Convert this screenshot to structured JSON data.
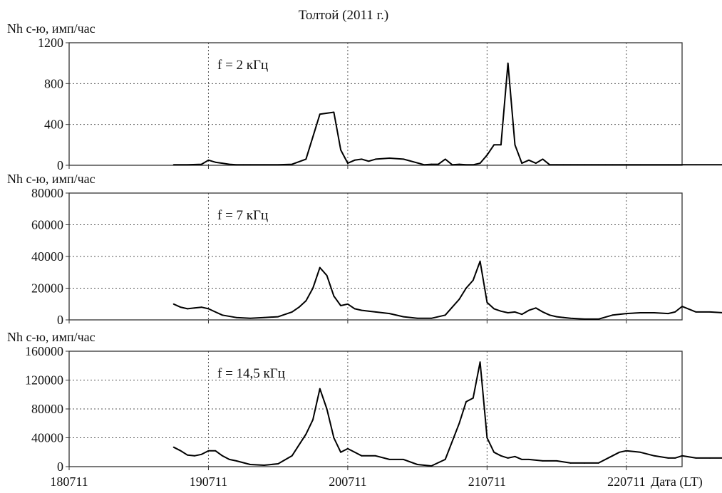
{
  "figure": {
    "title": "Толтой (2011 г.)",
    "xaxis_label": "Дата (LT)",
    "x_tick_labels": [
      "180711",
      "190711",
      "200711",
      "210711",
      "220711"
    ]
  },
  "colors": {
    "line": "#000000",
    "grid": "#555555",
    "frame": "#333333",
    "background": "#ffffff"
  },
  "chart_data": [
    {
      "type": "line",
      "ylabel": "Nh с-ю, имп/час",
      "annotation": "f = 2 кГц",
      "ylim": [
        0,
        1200
      ],
      "yticks": [
        0,
        400,
        800,
        1200
      ],
      "y_tick_labels": [
        "0",
        "400",
        "800",
        "1200"
      ],
      "grid": true,
      "x": [
        18.75,
        18.85,
        18.95,
        19.0,
        19.05,
        19.1,
        19.15,
        19.2,
        19.25,
        19.3,
        19.4,
        19.5,
        19.6,
        19.7,
        19.8,
        19.9,
        19.95,
        20.0,
        20.05,
        20.1,
        20.15,
        20.2,
        20.3,
        20.4,
        20.55,
        20.6,
        20.65,
        20.7,
        20.75,
        20.8,
        20.85,
        20.9,
        20.95,
        21.0,
        21.05,
        21.1,
        21.15,
        21.2,
        21.25,
        21.3,
        21.35,
        21.4,
        21.45,
        21.5,
        21.55,
        21.6,
        21.65,
        21.7,
        21.75,
        21.8,
        21.85,
        21.9,
        21.95,
        22.0,
        22.1,
        22.3,
        22.5,
        22.8,
        22.85,
        22.9,
        23.0,
        23.2,
        23.5
      ],
      "y": [
        5,
        5,
        10,
        50,
        30,
        20,
        10,
        5,
        5,
        5,
        5,
        5,
        10,
        60,
        500,
        520,
        150,
        20,
        50,
        60,
        40,
        60,
        70,
        60,
        5,
        10,
        10,
        60,
        5,
        10,
        5,
        5,
        20,
        100,
        200,
        200,
        1000,
        200,
        20,
        50,
        20,
        60,
        5,
        5,
        5,
        5,
        5,
        5,
        5,
        5,
        5,
        5,
        5,
        5,
        5,
        5,
        5,
        5,
        5,
        5,
        5,
        5,
        5
      ]
    },
    {
      "type": "line",
      "ylabel": "Nh с-ю, имп/час",
      "annotation": "f = 7 кГц",
      "ylim": [
        0,
        80000
      ],
      "yticks": [
        0,
        20000,
        40000,
        60000,
        80000
      ],
      "y_tick_labels": [
        "0",
        "20000",
        "40000",
        "60000",
        "80000"
      ],
      "grid": true,
      "x": [
        18.75,
        18.8,
        18.85,
        18.9,
        18.95,
        19.0,
        19.05,
        19.1,
        19.2,
        19.3,
        19.4,
        19.5,
        19.6,
        19.65,
        19.7,
        19.75,
        19.8,
        19.85,
        19.9,
        19.95,
        20.0,
        20.05,
        20.1,
        20.15,
        20.2,
        20.3,
        20.4,
        20.5,
        20.6,
        20.7,
        20.75,
        20.8,
        20.85,
        20.9,
        20.95,
        21.0,
        21.05,
        21.1,
        21.15,
        21.2,
        21.25,
        21.3,
        21.35,
        21.4,
        21.45,
        21.5,
        21.55,
        21.6,
        21.7,
        21.8,
        21.9,
        22.0,
        22.1,
        22.2,
        22.3,
        22.35,
        22.4,
        22.5,
        22.6,
        22.7,
        22.8,
        22.9,
        23.0,
        23.1,
        23.2,
        23.5
      ],
      "y": [
        10000,
        8000,
        7000,
        7500,
        8000,
        7000,
        5000,
        3000,
        1500,
        1000,
        1500,
        2000,
        5000,
        8000,
        12000,
        20000,
        33000,
        28000,
        15000,
        9000,
        10000,
        7000,
        6000,
        5500,
        5000,
        4000,
        2000,
        1000,
        1000,
        3000,
        8000,
        13000,
        20000,
        25000,
        37000,
        11000,
        7000,
        5500,
        4500,
        5000,
        3500,
        6000,
        7500,
        5000,
        3000,
        2000,
        1500,
        1000,
        500,
        500,
        3000,
        4000,
        4500,
        4500,
        4000,
        5000,
        8500,
        5000,
        5000,
        4500,
        3000,
        2500,
        2000,
        1500,
        1000,
        0
      ]
    },
    {
      "type": "line",
      "ylabel": "Nh с-ю, имп/час",
      "annotation": "f = 14,5 кГц",
      "ylim": [
        0,
        160000
      ],
      "yticks": [
        0,
        40000,
        80000,
        120000,
        160000
      ],
      "y_tick_labels": [
        "0",
        "40000",
        "80000",
        "120000",
        "160000"
      ],
      "grid": true,
      "x": [
        18.75,
        18.8,
        18.85,
        18.9,
        18.95,
        19.0,
        19.05,
        19.1,
        19.15,
        19.2,
        19.3,
        19.4,
        19.5,
        19.6,
        19.65,
        19.7,
        19.75,
        19.8,
        19.85,
        19.9,
        19.95,
        20.0,
        20.05,
        20.1,
        20.2,
        20.3,
        20.4,
        20.5,
        20.6,
        20.7,
        20.75,
        20.8,
        20.85,
        20.9,
        20.95,
        21.0,
        21.05,
        21.1,
        21.15,
        21.2,
        21.25,
        21.3,
        21.4,
        21.5,
        21.6,
        21.7,
        21.8,
        21.9,
        21.95,
        22.0,
        22.1,
        22.2,
        22.3,
        22.35,
        22.4,
        22.5,
        22.6,
        22.7,
        22.8,
        22.9,
        23.0,
        23.1,
        23.2,
        23.5
      ],
      "y": [
        27000,
        22000,
        16000,
        15000,
        17000,
        22000,
        22000,
        15000,
        10000,
        8000,
        3000,
        2000,
        4000,
        15000,
        30000,
        45000,
        65000,
        108000,
        80000,
        40000,
        20000,
        25000,
        20000,
        15000,
        15000,
        10000,
        10000,
        3000,
        1000,
        10000,
        35000,
        60000,
        90000,
        95000,
        145000,
        40000,
        20000,
        15000,
        12000,
        14000,
        10000,
        10000,
        8000,
        8000,
        5000,
        5000,
        5000,
        15000,
        20000,
        22000,
        20000,
        15000,
        12000,
        12000,
        15000,
        12000,
        12000,
        12000,
        10000,
        8000,
        6000,
        5000,
        3000,
        0
      ]
    }
  ]
}
